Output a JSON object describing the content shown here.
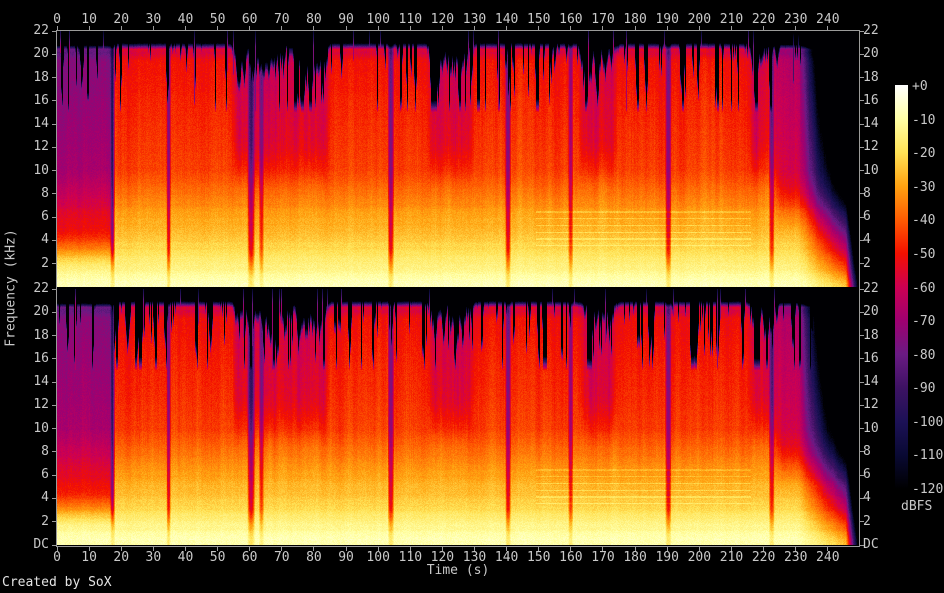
{
  "footer": {
    "credit": "Created by SoX"
  },
  "axes": {
    "x": {
      "label": "Time (s)",
      "tick_labels": [
        "0",
        "10",
        "20",
        "30",
        "40",
        "50",
        "60",
        "70",
        "80",
        "90",
        "100",
        "110",
        "120",
        "130",
        "140",
        "150",
        "160",
        "170",
        "180",
        "190",
        "200",
        "210",
        "220",
        "230",
        "240"
      ],
      "tick_values": [
        0,
        10,
        20,
        30,
        40,
        50,
        60,
        70,
        80,
        90,
        100,
        110,
        120,
        130,
        140,
        150,
        160,
        170,
        180,
        190,
        200,
        210,
        220,
        230,
        240
      ]
    },
    "y": {
      "label": "Frequency (kHz)",
      "tick_labels_channel": [
        "22",
        "20",
        "18",
        "16",
        "14",
        "12",
        "10",
        "8",
        "6",
        "4",
        "2"
      ],
      "tick_values_khz": [
        22,
        20,
        18,
        16,
        14,
        12,
        10,
        8,
        6,
        4,
        2
      ],
      "dc_label": "DC"
    },
    "colorbar": {
      "label": "dBFS",
      "tick_labels": [
        "+0",
        "-10",
        "-20",
        "-30",
        "-40",
        "-50",
        "-60",
        "-70",
        "-80",
        "-90",
        "-100",
        "-110",
        "-120"
      ],
      "tick_values_db": [
        0,
        -10,
        -20,
        -30,
        -40,
        -50,
        -60,
        -70,
        -80,
        -90,
        -100,
        -110,
        -120
      ]
    }
  },
  "chart_data": {
    "type": "heatmap",
    "subtype": "stereo-audio-spectrogram",
    "generator": "SoX",
    "title": "",
    "xlabel": "Time (s)",
    "ylabel": "Frequency (kHz)",
    "colorbar_label": "dBFS",
    "channels": [
      "upper",
      "lower"
    ],
    "duration_s": 249.4,
    "x_ticks_s": [
      0,
      10,
      20,
      30,
      40,
      50,
      60,
      70,
      80,
      90,
      100,
      110,
      120,
      130,
      140,
      150,
      160,
      170,
      180,
      190,
      200,
      210,
      220,
      230,
      240
    ],
    "y_range_khz": [
      0,
      22
    ],
    "y_ticks_khz": [
      22,
      20,
      18,
      16,
      14,
      12,
      10,
      8,
      6,
      4,
      2,
      0
    ],
    "db_range": [
      0,
      -120
    ],
    "colorbar_ticks_db": [
      0,
      -10,
      -20,
      -30,
      -40,
      -50,
      -60,
      -70,
      -80,
      -90,
      -100,
      -110,
      -120
    ],
    "palette": [
      {
        "db": 0,
        "color": "#ffffff"
      },
      {
        "db": -10,
        "color": "#ffffa6"
      },
      {
        "db": -20,
        "color": "#ffe256"
      },
      {
        "db": -30,
        "color": "#ffa211"
      },
      {
        "db": -40,
        "color": "#fe5c02"
      },
      {
        "db": -50,
        "color": "#f31000"
      },
      {
        "db": -60,
        "color": "#cd0052"
      },
      {
        "db": -70,
        "color": "#9f0070"
      },
      {
        "db": -80,
        "color": "#6a1a83"
      },
      {
        "db": -90,
        "color": "#3d1263"
      },
      {
        "db": -100,
        "color": "#1c1156"
      },
      {
        "db": -110,
        "color": "#090933"
      },
      {
        "db": -120,
        "color": "#000000"
      }
    ],
    "features": {
      "low_freq_peak_db": -9,
      "level_at_10khz_db": -44,
      "level_near_cutoff_db": -56,
      "lossy_cutoff_khz": 20.45,
      "intro_quiet_until_s": 17.2,
      "intro_high_attenuation_db": 24,
      "pre_fade_start_s": 222,
      "fade_out_start_s": 231,
      "near_silence_after_s": 245.5,
      "quiet_gaps": [
        [
          17.2,
          0.8,
          26
        ],
        [
          34.6,
          0.7,
          30
        ],
        [
          60.3,
          1.2,
          34
        ],
        [
          63.5,
          0.8,
          22
        ],
        [
          103.8,
          1.0,
          32
        ],
        [
          140.3,
          0.9,
          30
        ],
        [
          159.8,
          0.8,
          24
        ],
        [
          190.2,
          1.0,
          30
        ],
        [
          222.4,
          0.9,
          26
        ]
      ],
      "weak_high_regions_s": [
        [
          55,
          84
        ],
        [
          116,
          129
        ],
        [
          163,
          174
        ],
        [
          216,
          224
        ]
      ],
      "harmonic_lines_window_s": [
        149,
        216
      ]
    }
  }
}
